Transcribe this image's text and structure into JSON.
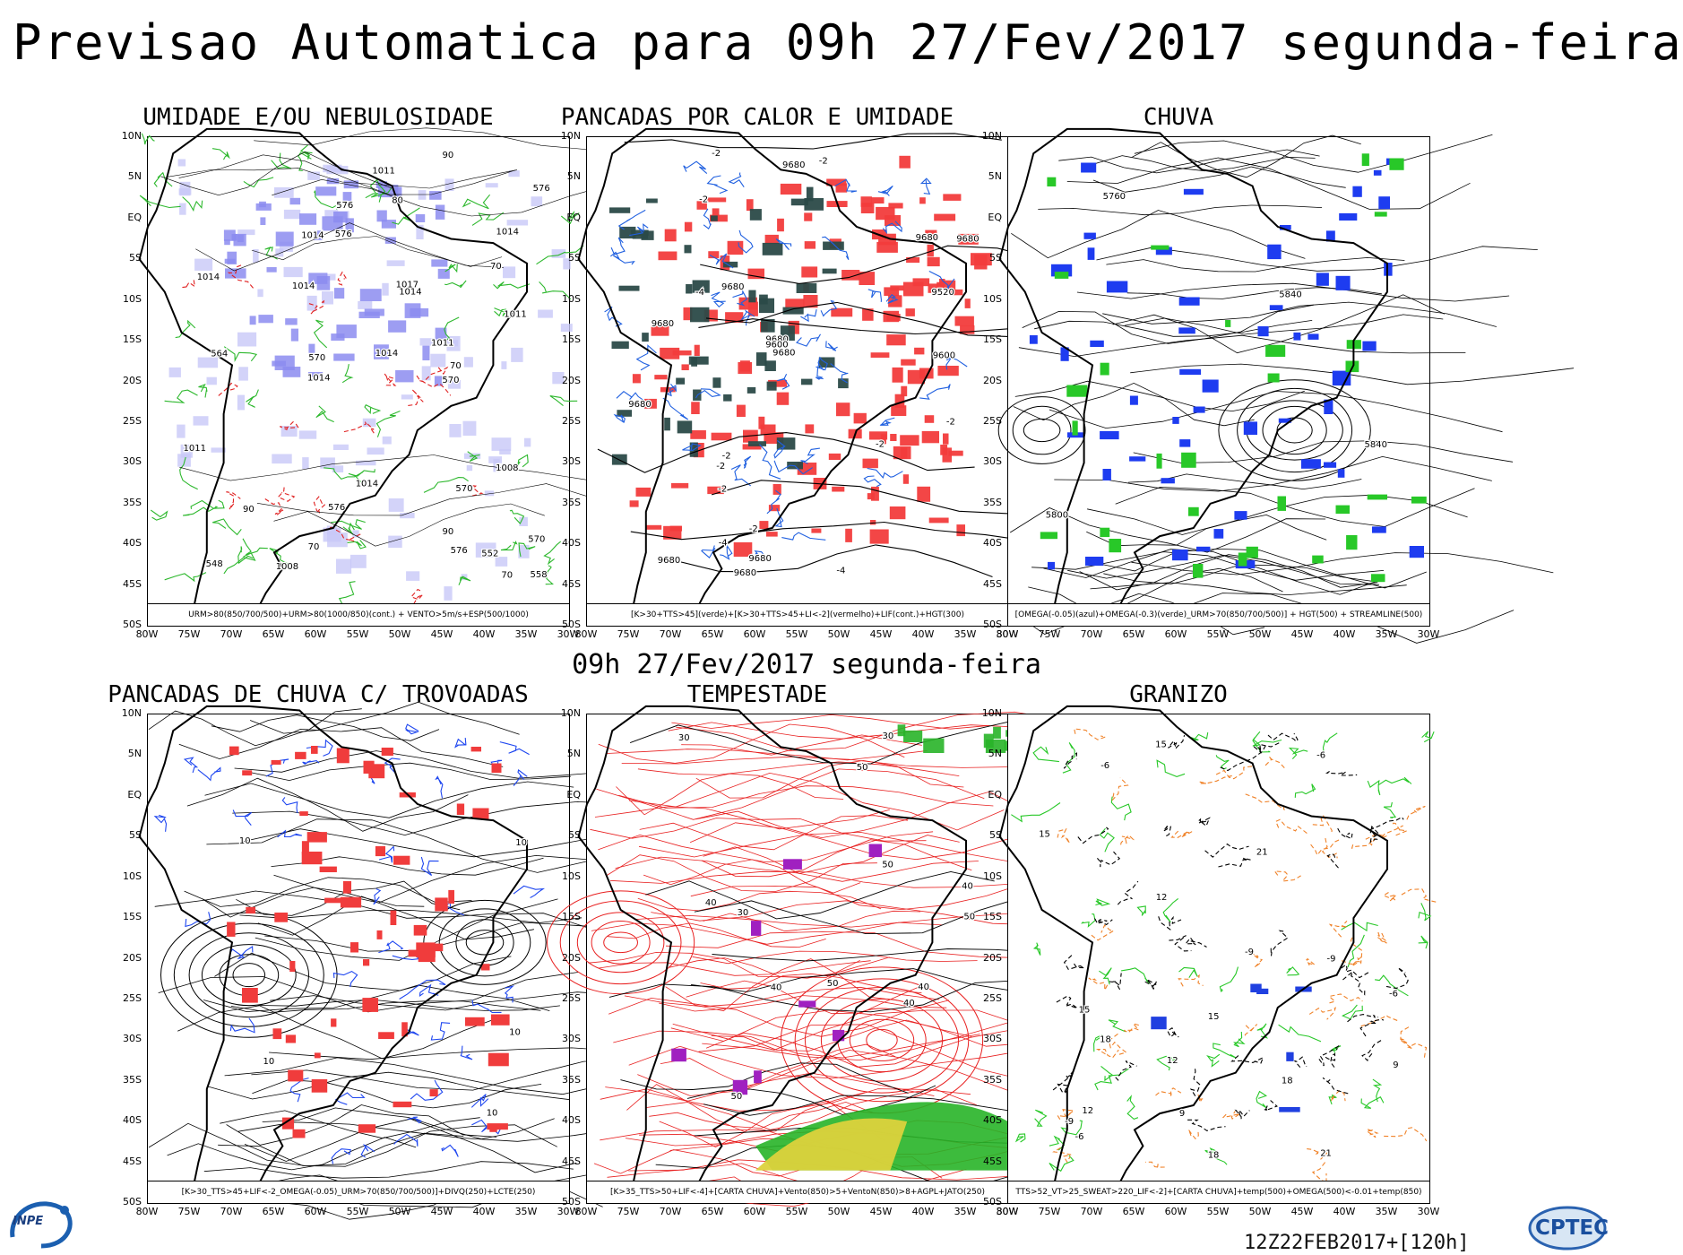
{
  "title": "Previsao Automatica  para 09h 27/Fev/2017 segunda-feira",
  "subtitle": "09h 27/Fev/2017 segunda-feira",
  "footer_code": "12Z22FEB2017+[120h]",
  "logos": {
    "left_text": "INPE",
    "right_text": "CPTEC"
  },
  "axes": {
    "lat_labels": [
      "10N",
      "5N",
      "EQ",
      "5S",
      "10S",
      "15S",
      "20S",
      "25S",
      "30S",
      "35S",
      "40S",
      "45S",
      "50S"
    ],
    "lon_labels": [
      "80W",
      "75W",
      "70W",
      "65W",
      "60W",
      "55W",
      "50W",
      "45W",
      "40W",
      "35W",
      "30W"
    ]
  },
  "panels": [
    {
      "id": "umidade",
      "title": "UMIDADE E/OU NEBULOSIDADE",
      "legend": "URM>80(850/700/500)+URM>80(1000/850)(cont.) + VENTO>5m/s+ESP(500/1000)",
      "palette": [
        "#8c8cf0",
        "#c8c8f8",
        "#2db82d",
        "#e02020"
      ],
      "labels": [
        "1014",
        "1014",
        "1011",
        "1017",
        "1014",
        "1014",
        "1014",
        "1008",
        "1011",
        "1014",
        "1011",
        "1014",
        "1014",
        "1008",
        "1011",
        "576",
        "570",
        "570",
        "570",
        "576",
        "576",
        "576",
        "576",
        "570",
        "564",
        "558",
        "552",
        "548",
        "90",
        "90",
        "90",
        "80",
        "70",
        "70",
        "70",
        "70"
      ]
    },
    {
      "id": "pancadas-calor",
      "title": "PANCADAS POR CALOR E UMIDADE",
      "legend": "[K>30+TTS>45](verde)+[K>30+TTS>45+LI<-2](vermelho)+LIF(cont.)+HGT(300)",
      "palette": [
        "#f23c3c",
        "#2b4a48",
        "#2060e0",
        "#000000"
      ],
      "labels": [
        "9680",
        "9680",
        "9680",
        "9680",
        "9680",
        "9680",
        "9680",
        "9680",
        "9680",
        "9680",
        "9680",
        "9600",
        "9600",
        "9520",
        "-2",
        "-2",
        "-2",
        "-2",
        "-2",
        "-2",
        "-2",
        "-4",
        "-4",
        "-4",
        "-2",
        "-2"
      ]
    },
    {
      "id": "chuva",
      "title": "CHUVA",
      "legend": "[OMEGA(-0.05)(azul)+OMEGA(-0.3)(verde)_URM>70(850/700/500)] + HGT(500) + STREAMLINE(500)",
      "palette": [
        "#1e3cf0",
        "#28c828",
        "#000000"
      ],
      "labels": [
        "5840",
        "5840",
        "5800",
        "5760"
      ]
    },
    {
      "id": "trovoadas",
      "title": "PANCADAS DE CHUVA C/ TROVOADAS",
      "legend": "[K>30_TTS>45+LIF<-2_OMEGA(-0.05)_URM>70(850/700/500)]+DIVQ(250)+LCTE(250)",
      "palette": [
        "#f03c3c",
        "#1e46f0",
        "#000000"
      ],
      "labels": [
        "10",
        "10",
        "10",
        "10",
        "10"
      ]
    },
    {
      "id": "tempestade",
      "title": "TEMPESTADE",
      "legend": "[K>35_TTS>50+LIF<-4]+[CARTA CHUVA]+Vento(850)>5+VentoN(850)>8+AGPL+JATO(250)",
      "palette": [
        "#e82020",
        "#28b428",
        "#dcd23c",
        "#a020c0"
      ],
      "labels": [
        "50",
        "50",
        "50",
        "50",
        "50",
        "40",
        "40",
        "40",
        "40",
        "40",
        "30",
        "30",
        "30"
      ]
    },
    {
      "id": "granizo",
      "title": "GRANIZO",
      "legend": "TTS>52_VT>25_SWEAT>220_LIF<-2]+[CARTA CHUVA]+temp(500)+OMEGA(500)<-0.01+temp(850)",
      "palette": [
        "#28c828",
        "#f08228",
        "#000000",
        "#2040e0"
      ],
      "labels": [
        "-9",
        "-6",
        "-6",
        "-6",
        "-6",
        "-9",
        "-9",
        "18",
        "18",
        "18",
        "15",
        "15",
        "15",
        "15",
        "12",
        "12",
        "12",
        "21",
        "21",
        "9",
        "9"
      ]
    }
  ]
}
